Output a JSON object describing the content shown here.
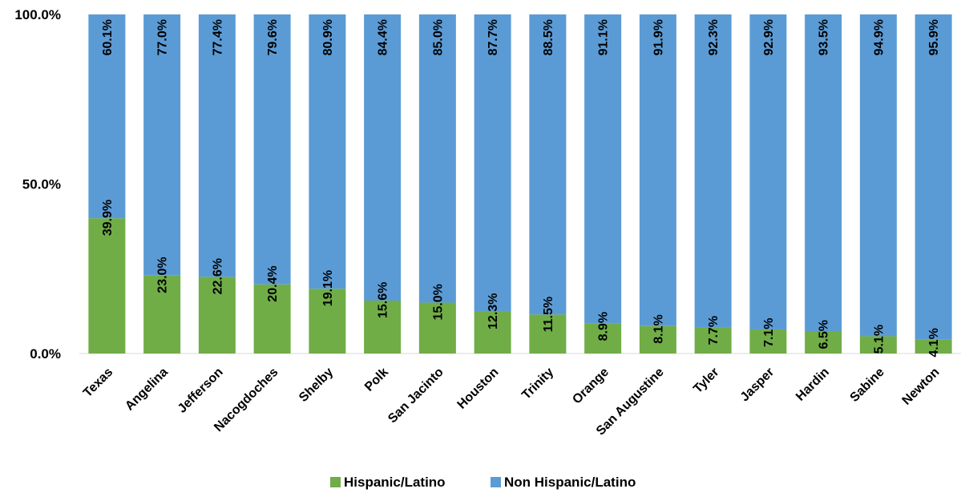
{
  "chart_data": {
    "type": "bar",
    "stacked": true,
    "percent": true,
    "categories": [
      "Texas",
      "Angelina",
      "Jefferson",
      "Nacogdoches",
      "Shelby",
      "Polk",
      "San Jacinto",
      "Houston",
      "Trinity",
      "Orange",
      "San Augustine",
      "Tyler",
      "Jasper",
      "Hardin",
      "Sabine",
      "Newton"
    ],
    "series": [
      {
        "name": "Hispanic/Latino",
        "color": "#70AD47",
        "values": [
          39.9,
          23.0,
          22.6,
          20.4,
          19.1,
          15.6,
          15.0,
          12.3,
          11.5,
          8.9,
          8.1,
          7.7,
          7.1,
          6.5,
          5.1,
          4.1
        ],
        "labels": [
          "39.9%",
          "23.0%",
          "22.6%",
          "20.4%",
          "19.1%",
          "15.6%",
          "15.0%",
          "12.3%",
          "11.5%",
          "8.9%",
          "8.1%",
          "7.7%",
          "7.1%",
          "6.5%",
          "5.1%",
          "4.1%"
        ]
      },
      {
        "name": "Non Hispanic/Latino",
        "color": "#5B9BD5",
        "values": [
          60.1,
          77.0,
          77.4,
          79.6,
          80.9,
          84.4,
          85.0,
          87.7,
          88.5,
          91.1,
          91.9,
          92.3,
          92.9,
          93.5,
          94.9,
          95.9
        ],
        "labels": [
          "60.1%",
          "77.0%",
          "77.4%",
          "79.6%",
          "80.9%",
          "84.4%",
          "85.0%",
          "87.7%",
          "88.5%",
          "91.1%",
          "91.9%",
          "92.3%",
          "92.9%",
          "93.5%",
          "94.9%",
          "95.9%"
        ]
      }
    ],
    "ylim": [
      0,
      100
    ],
    "yticks": [
      0,
      50,
      100
    ],
    "ytick_labels": [
      "0.0%",
      "50.0%",
      "100.0%"
    ],
    "grid": false,
    "legend_position": "bottom"
  }
}
